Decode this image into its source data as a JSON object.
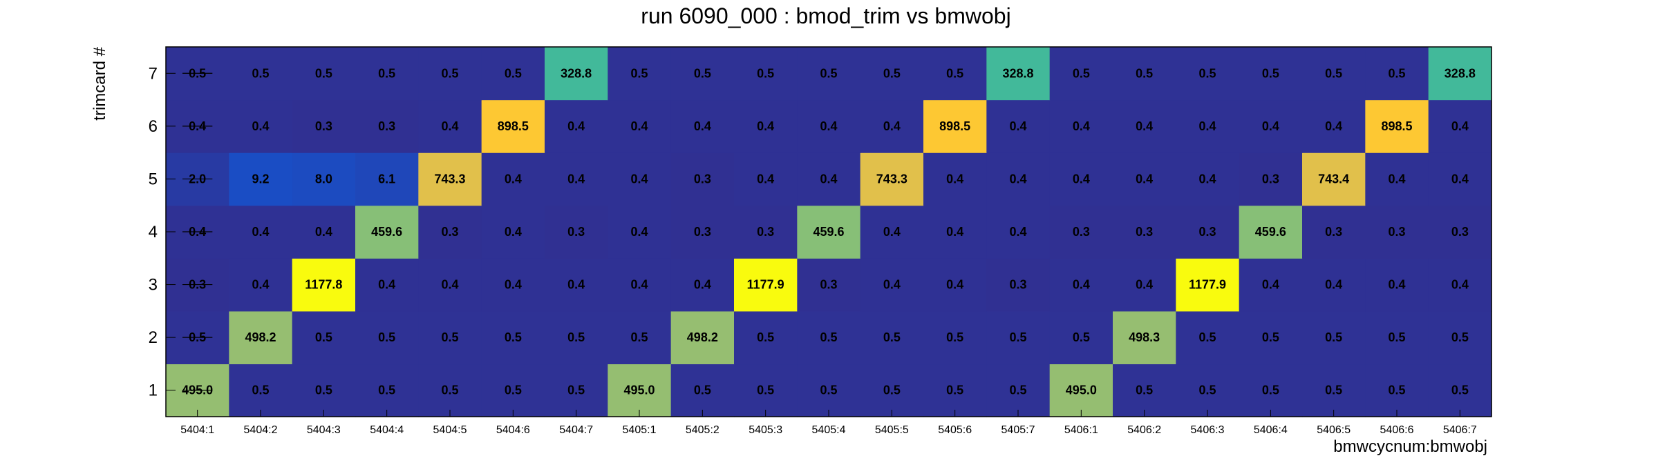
{
  "chart_data": {
    "type": "heatmap",
    "title": "run 6090_000 : bmod_trim vs bmwobj",
    "xlabel": "bmwcycnum:bmwobj",
    "ylabel": "trimcard #",
    "x_categories": [
      "5404:1",
      "5404:2",
      "5404:3",
      "5404:4",
      "5404:5",
      "5404:6",
      "5404:7",
      "5405:1",
      "5405:2",
      "5405:3",
      "5405:4",
      "5405:5",
      "5405:6",
      "5405:7",
      "5406:1",
      "5406:2",
      "5406:3",
      "5406:4",
      "5406:5",
      "5406:6",
      "5406:7"
    ],
    "y_categories": [
      "1",
      "2",
      "3",
      "4",
      "5",
      "6",
      "7"
    ],
    "values": [
      [
        495.0,
        0.5,
        0.5,
        0.5,
        0.5,
        0.5,
        0.5,
        495.0,
        0.5,
        0.5,
        0.5,
        0.5,
        0.5,
        0.5,
        495.0,
        0.5,
        0.5,
        0.5,
        0.5,
        0.5,
        0.5
      ],
      [
        0.5,
        498.2,
        0.5,
        0.5,
        0.5,
        0.5,
        0.5,
        0.5,
        498.2,
        0.5,
        0.5,
        0.5,
        0.5,
        0.5,
        0.5,
        498.3,
        0.5,
        0.5,
        0.5,
        0.5,
        0.5
      ],
      [
        0.3,
        0.4,
        1177.8,
        0.4,
        0.4,
        0.4,
        0.4,
        0.4,
        0.4,
        1177.9,
        0.3,
        0.4,
        0.4,
        0.3,
        0.4,
        0.4,
        1177.9,
        0.4,
        0.4,
        0.4,
        0.4
      ],
      [
        0.4,
        0.4,
        0.4,
        459.6,
        0.3,
        0.4,
        0.3,
        0.4,
        0.3,
        0.3,
        459.6,
        0.4,
        0.4,
        0.4,
        0.3,
        0.3,
        0.3,
        459.6,
        0.3,
        0.3,
        0.3
      ],
      [
        2.0,
        9.2,
        8.0,
        6.1,
        743.3,
        0.4,
        0.4,
        0.4,
        0.3,
        0.4,
        0.4,
        743.3,
        0.4,
        0.4,
        0.4,
        0.4,
        0.4,
        0.3,
        743.4,
        0.4,
        0.4
      ],
      [
        0.4,
        0.4,
        0.3,
        0.3,
        0.4,
        898.5,
        0.4,
        0.4,
        0.4,
        0.4,
        0.4,
        0.4,
        898.5,
        0.4,
        0.4,
        0.4,
        0.4,
        0.4,
        0.4,
        898.5,
        0.4
      ],
      [
        0.5,
        0.5,
        0.5,
        0.5,
        0.5,
        0.5,
        328.8,
        0.5,
        0.5,
        0.5,
        0.5,
        0.5,
        0.5,
        328.8,
        0.5,
        0.5,
        0.5,
        0.5,
        0.5,
        0.5,
        328.8
      ]
    ],
    "cell_labels": [
      [
        "495.0",
        "0.5",
        "0.5",
        "0.5",
        "0.5",
        "0.5",
        "0.5",
        "495.0",
        "0.5",
        "0.5",
        "0.5",
        "0.5",
        "0.5",
        "0.5",
        "495.0",
        "0.5",
        "0.5",
        "0.5",
        "0.5",
        "0.5",
        "0.5"
      ],
      [
        "0.5",
        "498.2",
        "0.5",
        "0.5",
        "0.5",
        "0.5",
        "0.5",
        "0.5",
        "498.2",
        "0.5",
        "0.5",
        "0.5",
        "0.5",
        "0.5",
        "0.5",
        "498.3",
        "0.5",
        "0.5",
        "0.5",
        "0.5",
        "0.5"
      ],
      [
        "0.3",
        "0.4",
        "1177.8",
        "0.4",
        "0.4",
        "0.4",
        "0.4",
        "0.4",
        "0.4",
        "1177.9",
        "0.3",
        "0.4",
        "0.4",
        "0.3",
        "0.4",
        "0.4",
        "1177.9",
        "0.4",
        "0.4",
        "0.4",
        "0.4"
      ],
      [
        "0.4",
        "0.4",
        "0.4",
        "459.6",
        "0.3",
        "0.4",
        "0.3",
        "0.4",
        "0.3",
        "0.3",
        "459.6",
        "0.4",
        "0.4",
        "0.4",
        "0.3",
        "0.3",
        "0.3",
        "459.6",
        "0.3",
        "0.3",
        "0.3"
      ],
      [
        "2.0",
        "9.2",
        "8.0",
        "6.1",
        "743.3",
        "0.4",
        "0.4",
        "0.4",
        "0.3",
        "0.4",
        "0.4",
        "743.3",
        "0.4",
        "0.4",
        "0.4",
        "0.4",
        "0.4",
        "0.3",
        "743.4",
        "0.4",
        "0.4"
      ],
      [
        "0.4",
        "0.4",
        "0.3",
        "0.3",
        "0.4",
        "898.5",
        "0.4",
        "0.4",
        "0.4",
        "0.4",
        "0.4",
        "0.4",
        "898.5",
        "0.4",
        "0.4",
        "0.4",
        "0.4",
        "0.4",
        "0.4",
        "898.5",
        "0.4"
      ],
      [
        "0.5",
        "0.5",
        "0.5",
        "0.5",
        "0.5",
        "0.5",
        "328.8",
        "0.5",
        "0.5",
        "0.5",
        "0.5",
        "0.5",
        "0.5",
        "328.8",
        "0.5",
        "0.5",
        "0.5",
        "0.5",
        "0.5",
        "0.5",
        "328.8"
      ]
    ],
    "color_scale": "root-kbird",
    "color_stops": [
      "#352a87",
      "#0f5cdd",
      "#1481d6",
      "#06a4ca",
      "#2eb7a4",
      "#87bf77",
      "#d1bb59",
      "#fec832",
      "#f9fb0e"
    ],
    "grid": false,
    "legend": "none"
  }
}
